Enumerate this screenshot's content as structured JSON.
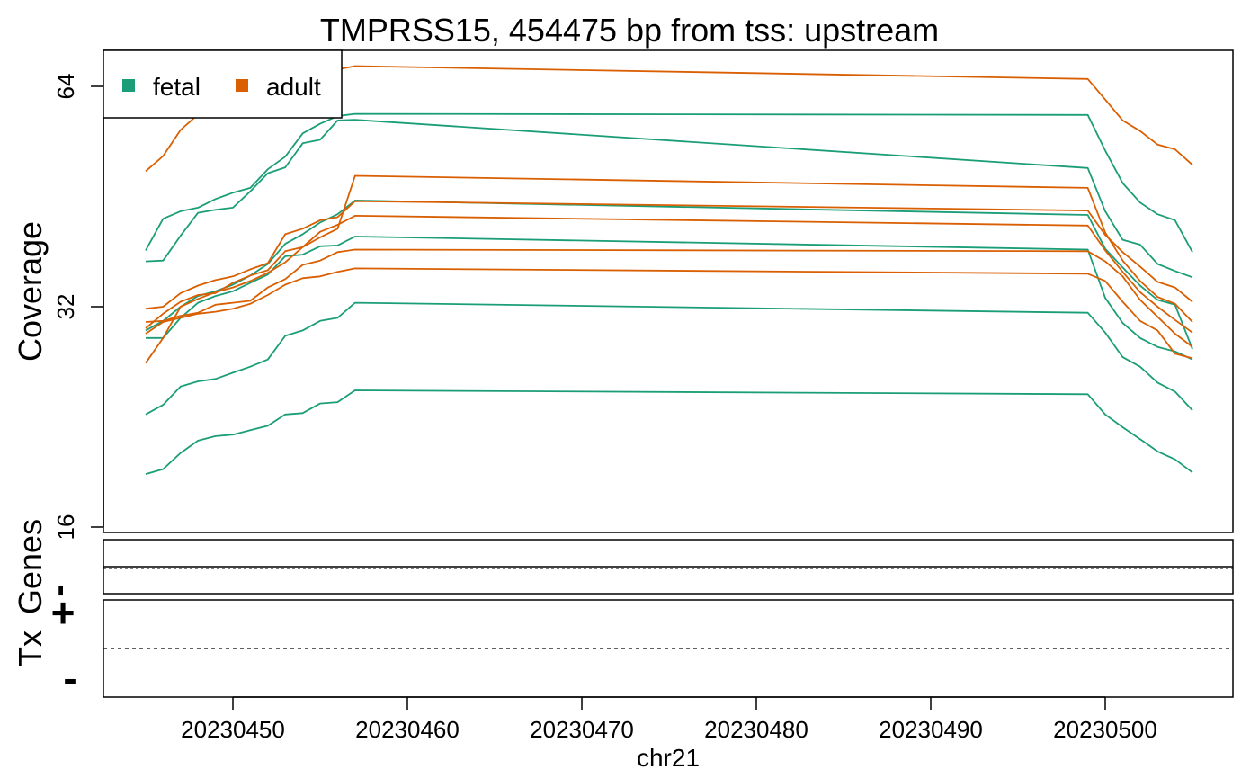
{
  "chart_data": {
    "type": "line",
    "title": "TMPRSS15, 454475 bp from tss: upstream",
    "xlabel": "chr21",
    "ylabel": "Coverage",
    "y_scale": "log2",
    "ylim": [
      16,
      74
    ],
    "xlim": [
      20230443,
      20230556
    ],
    "x_ticks": [
      20230450,
      20230460,
      20230470,
      20230480,
      20230490,
      20230500
    ],
    "y_ticks": [
      16,
      32,
      64
    ],
    "legend": {
      "position": "top-left",
      "entries": [
        {
          "label": "fetal",
          "color": "#1b9e77"
        },
        {
          "label": "adult",
          "color": "#d95f02"
        }
      ]
    },
    "x": [
      20230445,
      20230446,
      20230447,
      20230448,
      20230449,
      20230450,
      20230451,
      20230452,
      20230453,
      20230454,
      20230455,
      20230456,
      20230457,
      20230499,
      20230500,
      20230501,
      20230502,
      20230503,
      20230504,
      20230505
    ],
    "series": [
      {
        "group": "fetal",
        "color": "#1b9e77",
        "values": [
          18.9,
          19.2,
          20.2,
          21.0,
          21.3,
          21.4,
          21.7,
          22.0,
          22.8,
          22.9,
          23.6,
          23.7,
          24.6,
          24.3,
          22.8,
          21.9,
          21.1,
          20.3,
          19.8,
          19.0
        ]
      },
      {
        "group": "fetal",
        "color": "#1b9e77",
        "values": [
          22.8,
          23.5,
          24.9,
          25.3,
          25.5,
          26.0,
          26.5,
          27.1,
          29.2,
          29.7,
          30.6,
          30.9,
          32.4,
          31.4,
          29.5,
          27.3,
          26.5,
          25.2,
          24.5,
          23.1
        ]
      },
      {
        "group": "fetal",
        "color": "#1b9e77",
        "values": [
          29.0,
          29.0,
          30.9,
          32.4,
          33.1,
          33.6,
          34.5,
          35.4,
          37.5,
          37.7,
          38.7,
          38.8,
          39.9,
          38.3,
          32.9,
          30.4,
          29.0,
          28.2,
          27.8,
          27.1
        ]
      },
      {
        "group": "fetal",
        "color": "#1b9e77",
        "values": [
          29.7,
          30.6,
          32.0,
          33.1,
          33.6,
          34.3,
          35.3,
          36.6,
          39.0,
          40.2,
          41.7,
          42.8,
          44.7,
          42.7,
          38.4,
          36.2,
          34.2,
          32.7,
          32.2,
          28.0
        ]
      },
      {
        "group": "fetal",
        "color": "#1b9e77",
        "values": [
          36.9,
          37.0,
          40.0,
          43.0,
          43.4,
          43.7,
          46.0,
          48.7,
          49.6,
          53.5,
          54.1,
          57.5,
          57.6,
          49.5,
          43.2,
          39.5,
          38.9,
          36.6,
          35.8,
          35.1
        ]
      },
      {
        "group": "fetal",
        "color": "#1b9e77",
        "values": [
          38.2,
          42.2,
          43.2,
          43.7,
          44.9,
          45.8,
          46.5,
          49.3,
          51.3,
          55.2,
          56.9,
          58.3,
          58.7,
          58.5,
          52.3,
          47.2,
          44.4,
          42.8,
          42.0,
          38.0
        ]
      },
      {
        "group": "adult",
        "color": "#d95f02",
        "values": [
          26.8,
          29.0,
          32.0,
          32.8,
          33.5,
          34.0,
          34.7,
          35.6,
          36.8,
          38.6,
          39.8,
          40.9,
          48.3,
          46.5,
          40.4,
          37.0,
          34.7,
          33.0,
          32.3,
          30.5
        ]
      },
      {
        "group": "adult",
        "color": "#d95f02",
        "values": [
          29.4,
          30.5,
          30.9,
          31.3,
          31.5,
          31.8,
          32.3,
          33.2,
          34.3,
          35.0,
          35.2,
          35.7,
          36.1,
          35.5,
          34.7,
          32.5,
          30.6,
          29.7,
          27.6,
          27.2
        ]
      },
      {
        "group": "adult",
        "color": "#d95f02",
        "values": [
          30.5,
          30.6,
          31.1,
          31.4,
          32.2,
          32.4,
          32.6,
          34.0,
          34.9,
          36.5,
          37.0,
          38.0,
          38.3,
          38.1,
          36.9,
          35.2,
          32.7,
          31.0,
          29.4,
          28.2
        ]
      },
      {
        "group": "adult",
        "color": "#d95f02",
        "values": [
          29.9,
          31.3,
          32.5,
          33.2,
          33.4,
          34.5,
          35.3,
          35.9,
          38.1,
          38.6,
          40.5,
          41.4,
          42.6,
          41.3,
          38.2,
          35.7,
          33.5,
          32.0,
          30.7,
          29.5
        ]
      },
      {
        "group": "adult",
        "color": "#d95f02",
        "values": [
          31.8,
          32.0,
          33.4,
          34.2,
          34.8,
          35.2,
          36.0,
          36.7,
          40.2,
          40.9,
          42.0,
          42.4,
          44.6,
          43.3,
          40.1,
          38.0,
          36.3,
          34.6,
          34.0,
          32.5
        ]
      },
      {
        "group": "adult",
        "color": "#d95f02",
        "values": [
          49.0,
          51.4,
          55.8,
          58.6,
          59.8,
          60.6,
          61.8,
          63.4,
          65.0,
          66.0,
          66.5,
          67.5,
          68.2,
          65.5,
          61.4,
          57.5,
          55.6,
          53.3,
          52.5,
          50.0
        ]
      }
    ]
  },
  "tracks": {
    "genes_label": "Genes",
    "tx_label": "Tx",
    "plus_label": "+",
    "minus_label": "-"
  }
}
